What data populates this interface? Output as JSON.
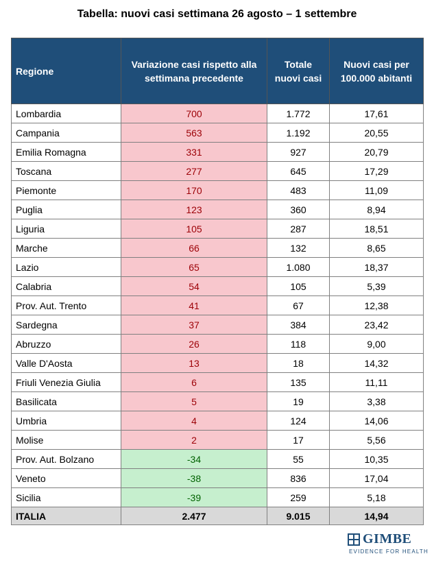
{
  "title": "Tabella: nuovi casi settimana 26 agosto – 1 settembre",
  "table": {
    "headers": [
      "Regione",
      "Variazione casi rispetto alla settimana precedente",
      "Totale nuovi casi",
      "Nuovi casi per 100.000 abitanti"
    ],
    "rows": [
      {
        "regione": "Lombardia",
        "variazione": "700",
        "totale": "1.772",
        "per100k": "17,61"
      },
      {
        "regione": "Campania",
        "variazione": "563",
        "totale": "1.192",
        "per100k": "20,55"
      },
      {
        "regione": "Emilia Romagna",
        "variazione": "331",
        "totale": "927",
        "per100k": "20,79"
      },
      {
        "regione": "Toscana",
        "variazione": "277",
        "totale": "645",
        "per100k": "17,29"
      },
      {
        "regione": "Piemonte",
        "variazione": "170",
        "totale": "483",
        "per100k": "11,09"
      },
      {
        "regione": "Puglia",
        "variazione": "123",
        "totale": "360",
        "per100k": "8,94"
      },
      {
        "regione": "Liguria",
        "variazione": "105",
        "totale": "287",
        "per100k": "18,51"
      },
      {
        "regione": "Marche",
        "variazione": "66",
        "totale": "132",
        "per100k": "8,65"
      },
      {
        "regione": "Lazio",
        "variazione": "65",
        "totale": "1.080",
        "per100k": "18,37"
      },
      {
        "regione": "Calabria",
        "variazione": "54",
        "totale": "105",
        "per100k": "5,39"
      },
      {
        "regione": "Prov. Aut. Trento",
        "variazione": "41",
        "totale": "67",
        "per100k": "12,38"
      },
      {
        "regione": "Sardegna",
        "variazione": "37",
        "totale": "384",
        "per100k": "23,42"
      },
      {
        "regione": "Abruzzo",
        "variazione": "26",
        "totale": "118",
        "per100k": "9,00"
      },
      {
        "regione": "Valle D'Aosta",
        "variazione": "13",
        "totale": "18",
        "per100k": "14,32"
      },
      {
        "regione": "Friuli Venezia Giulia",
        "variazione": "6",
        "totale": "135",
        "per100k": "11,11"
      },
      {
        "regione": "Basilicata",
        "variazione": "5",
        "totale": "19",
        "per100k": "3,38"
      },
      {
        "regione": "Umbria",
        "variazione": "4",
        "totale": "124",
        "per100k": "14,06"
      },
      {
        "regione": "Molise",
        "variazione": "2",
        "totale": "17",
        "per100k": "5,56"
      },
      {
        "regione": "Prov. Aut. Bolzano",
        "variazione": "-34",
        "totale": "55",
        "per100k": "10,35"
      },
      {
        "regione": "Veneto",
        "variazione": "-38",
        "totale": "836",
        "per100k": "17,04"
      },
      {
        "regione": "Sicilia",
        "variazione": "-39",
        "totale": "259",
        "per100k": "5,18"
      }
    ],
    "total": {
      "regione": "ITALIA",
      "variazione": "2.477",
      "totale": "9.015",
      "per100k": "14,94"
    }
  },
  "colors": {
    "header_bg": "#1f4e79",
    "increase_bg": "#f8c7cd",
    "increase_text": "#9c0006",
    "decrease_bg": "#c6efce",
    "decrease_text": "#006100",
    "total_bg": "#d9d9d9"
  },
  "logo": {
    "icon": "gimbe-grid-icon",
    "name": "GIMBE",
    "tagline": "EVIDENCE FOR HEALTH"
  }
}
